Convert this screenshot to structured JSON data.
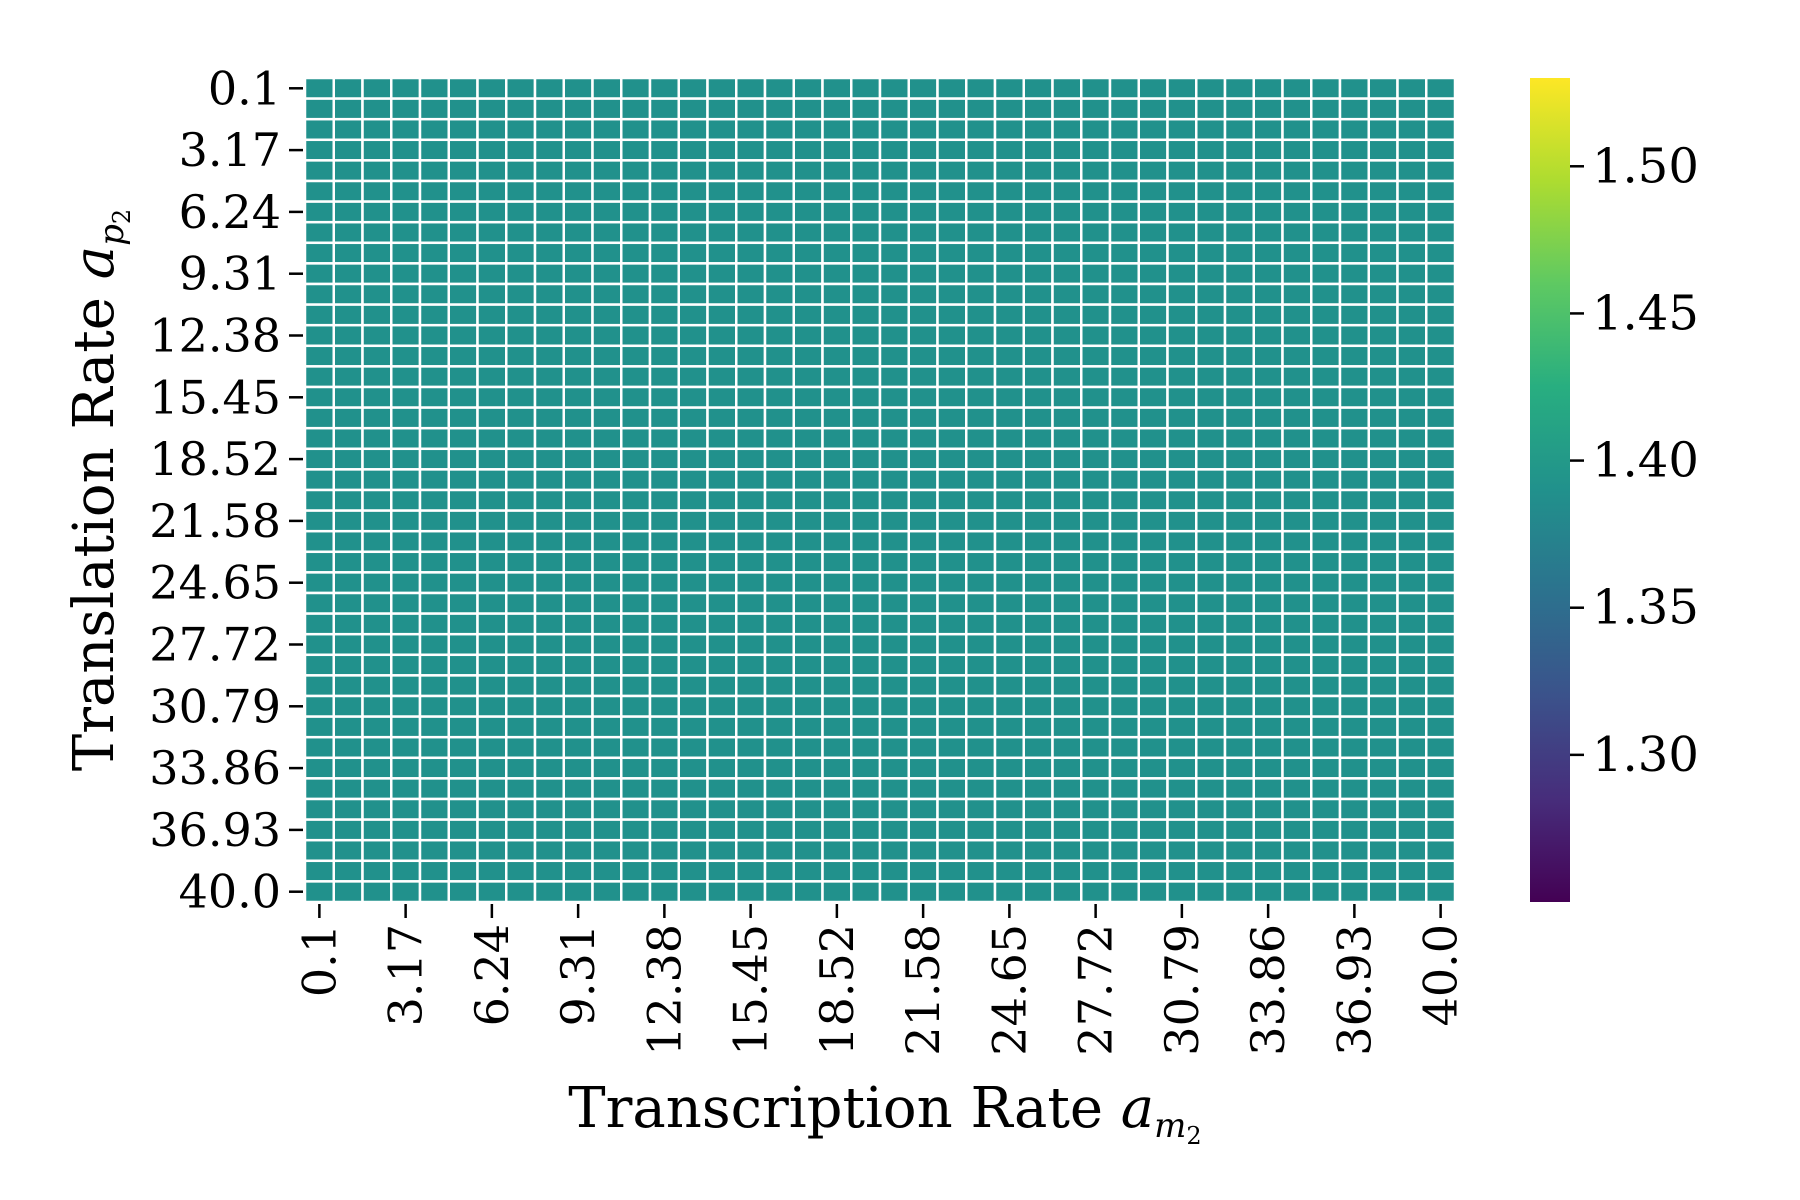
{
  "chart_data": {
    "type": "heatmap",
    "title": "",
    "xlabel": {
      "text": "Transcription Rate ",
      "var": "a",
      "sub": "m",
      "subsub": "2"
    },
    "ylabel": {
      "text": "Translation Rate ",
      "var": "a",
      "sub": "p",
      "subsub": "2"
    },
    "x_tick_labels": [
      "0.1",
      "3.17",
      "6.24",
      "9.31",
      "12.38",
      "15.45",
      "18.52",
      "21.58",
      "24.65",
      "27.72",
      "30.79",
      "33.86",
      "36.93",
      "40.0"
    ],
    "y_tick_labels": [
      "0.1",
      "3.17",
      "6.24",
      "9.31",
      "12.38",
      "15.45",
      "18.52",
      "21.58",
      "24.65",
      "27.72",
      "30.79",
      "33.86",
      "36.93",
      "40.0"
    ],
    "x_range": [
      0.1,
      40.0
    ],
    "y_range": [
      0.1,
      40.0
    ],
    "n_cols": 40,
    "n_rows": 40,
    "uniform_value": 1.4,
    "colormap": "viridis",
    "cell_color": "#21918c",
    "cell_edge_color": "#ffffff",
    "colorbar": {
      "vmin": 1.25,
      "vmax": 1.53,
      "ticks": [
        1.3,
        1.35,
        1.4,
        1.45,
        1.5
      ],
      "tick_labels": [
        "1.30",
        "1.35",
        "1.40",
        "1.45",
        "1.50"
      ]
    },
    "grid": false,
    "legend": "none"
  }
}
